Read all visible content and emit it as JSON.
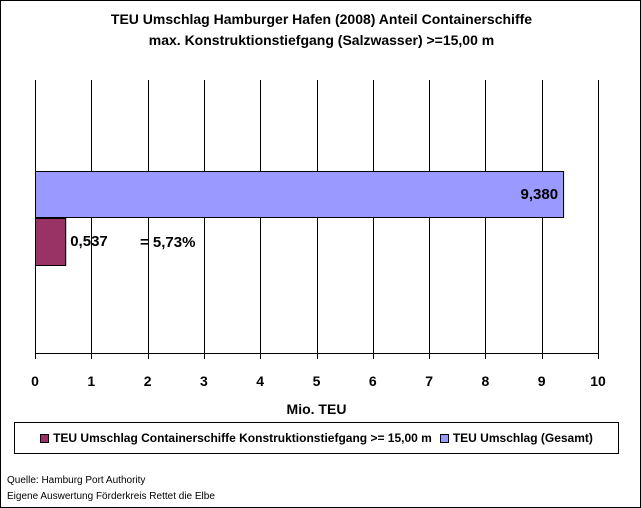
{
  "chart_data": {
    "type": "bar",
    "orientation": "horizontal",
    "title_line1": "TEU Umschlag Hamburger Hafen (2008)  Anteil Containerschiffe",
    "title_line2": "max. Konstruktionstiefgang (Salzwasser) >=15,00 m",
    "xlabel": "Mio. TEU",
    "xlim": [
      0,
      10
    ],
    "xticks": [
      "0",
      "1",
      "2",
      "3",
      "4",
      "5",
      "6",
      "7",
      "8",
      "9",
      "10"
    ],
    "grid": true,
    "legend_position": "bottom",
    "series": [
      {
        "name": "TEU Umschlag Containerschiffe Konstruktionstiefgang >= 15,00 m",
        "value": 0.537,
        "label": "0,537",
        "color": "#993366"
      },
      {
        "name": "TEU Umschlag (Gesamt)",
        "value": 9.38,
        "label": "9,380",
        "color": "#9999ff"
      }
    ],
    "annotation": "= 5,73%"
  },
  "source": {
    "line1": "Quelle: Hamburg Port Authority",
    "line2": "Eigene Auswertung Förderkreis Rettet die Elbe"
  }
}
